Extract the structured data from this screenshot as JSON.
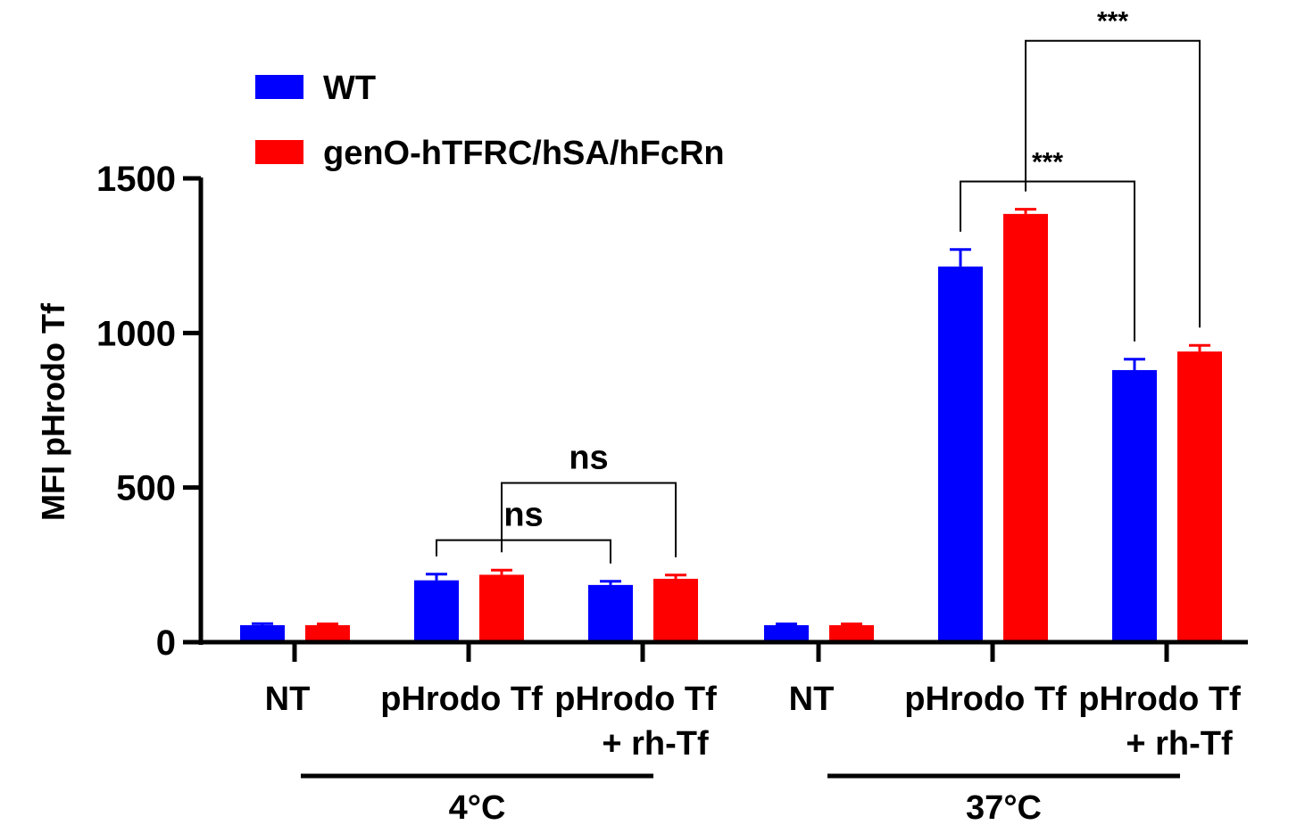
{
  "chart_data": {
    "type": "bar",
    "ylabel": "MFI pHrodo Tf",
    "ylim": [
      0,
      1500
    ],
    "yticks": [
      "0",
      "500",
      "1000",
      "1500"
    ],
    "ytick_values": [
      0,
      500,
      1000,
      1500
    ],
    "categories": [
      {
        "line1": "NT",
        "line2": ""
      },
      {
        "line1": "pHrodo Tf",
        "line2": ""
      },
      {
        "line1": "pHrodo Tf",
        "line2": "+ rh-Tf"
      },
      {
        "line1": "NT",
        "line2": ""
      },
      {
        "line1": "pHrodo Tf",
        "line2": ""
      },
      {
        "line1": "pHrodo Tf",
        "line2": "+ rh-Tf"
      }
    ],
    "groups": [
      {
        "label": "4°C",
        "categories": [
          0,
          1,
          2
        ]
      },
      {
        "label": "37°C",
        "categories": [
          3,
          4,
          5
        ]
      }
    ],
    "series": [
      {
        "name": "WT",
        "color": "#0000ff",
        "values": [
          55,
          200,
          185,
          55,
          1215,
          880
        ],
        "errors": [
          5,
          20,
          12,
          4,
          55,
          35
        ]
      },
      {
        "name": "genO-hTFRC/hSA/hFcRn",
        "color": "#ff0000",
        "values": [
          55,
          218,
          205,
          55,
          1385,
          940
        ],
        "errors": [
          4,
          15,
          12,
          4,
          15,
          20
        ]
      }
    ],
    "significance": [
      {
        "label": "ns",
        "from_category": 1,
        "from_series": 0,
        "to_category": 2,
        "to_series": 0,
        "bar_value": 330
      },
      {
        "label": "ns",
        "from_category": 1,
        "from_series": 1,
        "to_category": 2,
        "to_series": 1,
        "bar_value": 515
      },
      {
        "label": "***",
        "from_category": 4,
        "from_series": 0,
        "to_category": 5,
        "to_series": 0,
        "bar_value": 1490
      },
      {
        "label": "***",
        "from_category": 4,
        "from_series": 1,
        "to_category": 5,
        "to_series": 1,
        "bar_value": 1945
      }
    ],
    "legend_position": "top-left",
    "grid": false
  }
}
